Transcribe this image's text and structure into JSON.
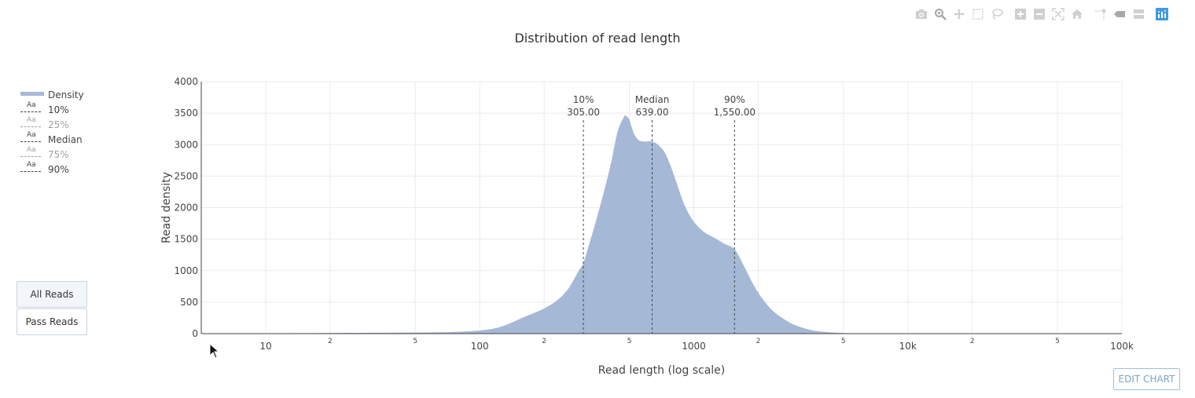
{
  "toolbar": {
    "icons": [
      "camera-icon",
      "zoom-icon",
      "pan-icon",
      "box-select-icon",
      "lasso-select-icon",
      "zoom-in-icon",
      "zoom-out-icon",
      "autoscale-icon",
      "reset-axes-icon",
      "spike-lines-icon",
      "hover-closest-icon",
      "hover-compare-icon",
      "plotly-logo-icon"
    ],
    "colors": {
      "icon": "#cfcfcf",
      "active": "#a8a8a8",
      "logo": "#3f9be0"
    }
  },
  "buttons": {
    "all_reads": "All Reads",
    "pass_reads": "Pass Reads"
  },
  "edit_chart": "EDIT CHART",
  "chart_data": {
    "type": "area",
    "title": "Distribution of read length",
    "xlabel": "Read length (log scale)",
    "ylabel": "Read density",
    "x_scale": "log",
    "xlim": [
      5,
      100000
    ],
    "ylim": [
      0,
      4000
    ],
    "grid": true,
    "legend_position": "left",
    "y_ticks": [
      "0",
      "500",
      "1000",
      "1500",
      "2000",
      "2500",
      "3000",
      "3500",
      "4000"
    ],
    "x_tick_values": [
      10,
      20,
      50,
      100,
      200,
      500,
      1000,
      2000,
      5000,
      10000,
      20000,
      50000,
      100000
    ],
    "x_tick_labels": [
      "10",
      "2",
      "5",
      "100",
      "2",
      "5",
      "1000",
      "2",
      "5",
      "10k",
      "2",
      "5",
      "100k"
    ],
    "colors": {
      "density": "#a5b8d6",
      "marker_line": "#444444"
    },
    "series": [
      {
        "name": "Density",
        "x": [
          5,
          10,
          20,
          40,
          60,
          80,
          100,
          120,
          140,
          160,
          180,
          200,
          230,
          260,
          290,
          305,
          320,
          350,
          380,
          410,
          440,
          470,
          480,
          500,
          510,
          530,
          560,
          600,
          639,
          680,
          730,
          780,
          830,
          900,
          980,
          1100,
          1250,
          1400,
          1550,
          1700,
          1850,
          2000,
          2200,
          2400,
          2700,
          3000,
          3500,
          4000,
          5000,
          6000,
          8000,
          10000,
          20000,
          50000,
          100000
        ],
        "y": [
          0,
          5,
          10,
          15,
          20,
          30,
          50,
          90,
          170,
          260,
          330,
          400,
          530,
          720,
          1000,
          1120,
          1350,
          1800,
          2250,
          2700,
          3200,
          3430,
          3460,
          3400,
          3300,
          3150,
          3060,
          3050,
          3050,
          3000,
          2880,
          2660,
          2400,
          2060,
          1820,
          1630,
          1520,
          1420,
          1340,
          1100,
          850,
          650,
          460,
          330,
          210,
          130,
          60,
          30,
          10,
          6,
          3,
          2,
          1,
          0,
          0
        ]
      }
    ],
    "markers": [
      {
        "name": "10%",
        "value": 305.0,
        "label": "10%",
        "value_label": "305.00",
        "visible": true
      },
      {
        "name": "25%",
        "visible": false
      },
      {
        "name": "Median",
        "value": 639.0,
        "label": "Median",
        "value_label": "639.00",
        "visible": true
      },
      {
        "name": "75%",
        "visible": false
      },
      {
        "name": "90%",
        "value": 1550.0,
        "label": "90%",
        "value_label": "1,550.00",
        "visible": true
      }
    ],
    "legend": [
      {
        "label": "Density",
        "kind": "fill",
        "visible": true
      },
      {
        "label": "10%",
        "kind": "line",
        "visible": true
      },
      {
        "label": "25%",
        "kind": "line",
        "visible": false
      },
      {
        "label": "Median",
        "kind": "line",
        "visible": true
      },
      {
        "label": "75%",
        "kind": "line",
        "visible": false
      },
      {
        "label": "90%",
        "kind": "line",
        "visible": true
      }
    ]
  }
}
